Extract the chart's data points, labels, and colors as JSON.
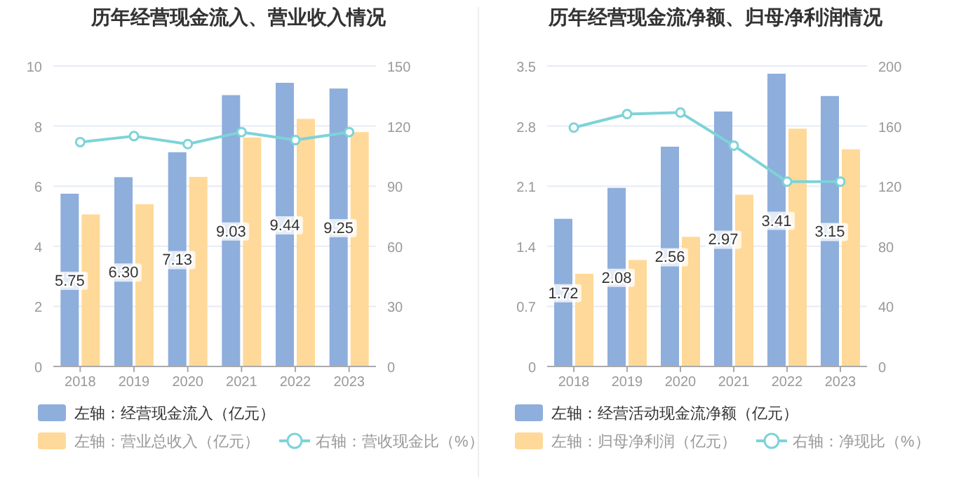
{
  "chart_data": [
    {
      "type": "bar",
      "title": "历年经营现金流入、营业收入情况",
      "categories": [
        "2018",
        "2019",
        "2020",
        "2021",
        "2022",
        "2023"
      ],
      "series": [
        {
          "name": "左轴：经营现金流入（亿元）",
          "color": "#8eaedc",
          "values": [
            5.75,
            6.3,
            7.13,
            9.03,
            9.44,
            9.25
          ],
          "value_labels": [
            "5.75",
            "6.30",
            "7.13",
            "9.03",
            "9.44",
            "9.25"
          ]
        },
        {
          "name": "左轴：营业总收入（亿元）",
          "color": "#ffd999",
          "values": [
            5.06,
            5.4,
            6.31,
            7.62,
            8.24,
            7.8
          ]
        },
        {
          "name": "右轴：营收现金比（%）",
          "type": "line",
          "axis": "y2",
          "color": "#7dd3d8",
          "marker": "circle",
          "values": [
            112,
            115,
            111,
            117,
            113,
            117
          ]
        }
      ],
      "ylim": [
        0,
        10
      ],
      "yticks": [
        0,
        2,
        4,
        6,
        8,
        10
      ],
      "y2lim": [
        0,
        150
      ],
      "y2ticks": [
        0,
        30,
        60,
        90,
        120,
        150
      ],
      "grid": "y",
      "legend": "bottom"
    },
    {
      "type": "bar",
      "title": "历年经营现金流净额、归母净利润情况",
      "categories": [
        "2018",
        "2019",
        "2020",
        "2021",
        "2022",
        "2023"
      ],
      "series": [
        {
          "name": "左轴：经营活动现金流净额（亿元）",
          "color": "#8eaedc",
          "values": [
            1.72,
            2.08,
            2.56,
            2.97,
            3.41,
            3.15
          ],
          "value_labels": [
            "1.72",
            "2.08",
            "2.56",
            "2.97",
            "3.41",
            "3.15"
          ]
        },
        {
          "name": "左轴：归母净利润（亿元）",
          "color": "#ffd999",
          "values": [
            1.08,
            1.24,
            1.51,
            2.0,
            2.77,
            2.53
          ]
        },
        {
          "name": "右轴：净现比（%）",
          "type": "line",
          "axis": "y2",
          "color": "#7dd3d8",
          "marker": "circle",
          "values": [
            159,
            168,
            169,
            147,
            123,
            123
          ]
        }
      ],
      "ylim": [
        0,
        3.5
      ],
      "yticks": [
        0,
        0.7,
        1.4,
        2.1,
        2.8,
        3.5
      ],
      "y2lim": [
        0,
        200
      ],
      "y2ticks": [
        0,
        40,
        80,
        120,
        160,
        200
      ],
      "grid": "y",
      "legend": "bottom"
    }
  ]
}
